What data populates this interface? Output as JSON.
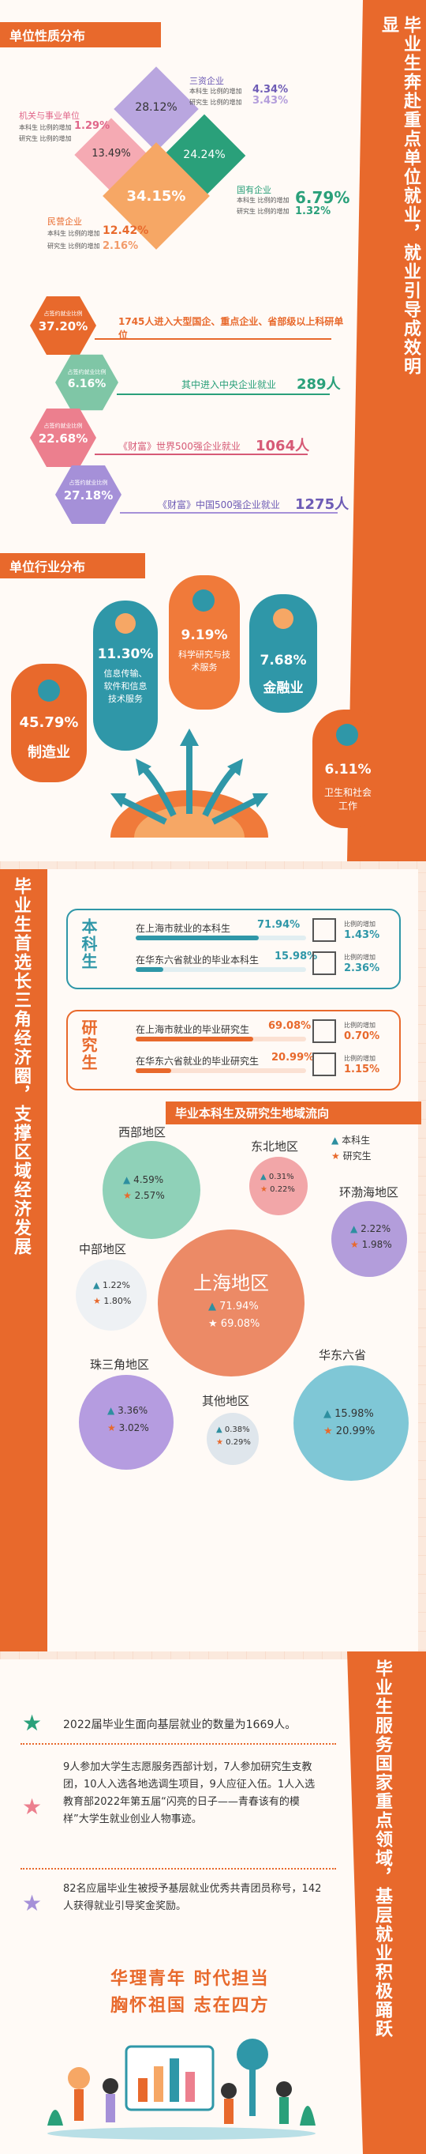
{
  "section1": {
    "title": "单位性质分布",
    "side_title": "毕业生奔赴重点单位就业，就业引导成效明显",
    "diamonds": {
      "top": {
        "pct": "28.12%",
        "name": "三资企业",
        "l1": "本科生 比例的增加",
        "v1": "4.34%",
        "l2": "研究生 比例的增加",
        "v2": "3.43%"
      },
      "left": {
        "pct": "13.49%",
        "name": "机关与事业单位",
        "l1": "本科生 比例的增加",
        "v1": "1.29%",
        "l2": "研究生 比例的增加"
      },
      "right": {
        "pct": "24.24%"
      },
      "bottom": {
        "pct": "34.15%"
      },
      "state": {
        "name": "国有企业",
        "l1": "本科生 比例的增加",
        "v1": "6.79%",
        "l2": "研究生 比例的增加",
        "v2": "1.32%"
      },
      "private": {
        "name": "民营企业",
        "l1": "本科生 比例的增加",
        "v1": "12.42%",
        "l2": "研究生 比例的增加",
        "v2": "2.16%"
      }
    },
    "hexes": [
      {
        "pct": "37.20%",
        "label": "占签约就业比例",
        "text": "1745人进入大型国企、重点企业、省部级以上科研单位",
        "num": ""
      },
      {
        "pct": "6.16%",
        "label": "占签约就业比例",
        "text": "其中进入中央企业就业",
        "num": "289人"
      },
      {
        "pct": "22.68%",
        "label": "占签约就业比例",
        "text": "《财富》世界500强企业就业",
        "num": "1064人"
      },
      {
        "pct": "27.18%",
        "label": "占签约就业比例",
        "text": "《财富》中国500强企业就业",
        "num": "1275人"
      }
    ]
  },
  "section2": {
    "title": "单位行业分布",
    "pills": [
      {
        "pct": "11.30%",
        "name": "信息传输、软件和信息技术服务"
      },
      {
        "pct": "9.19%",
        "name": "科学研究与技术服务"
      },
      {
        "pct": "7.68%",
        "name": "金融业"
      },
      {
        "pct": "45.79%",
        "name": "制造业"
      },
      {
        "pct": "6.11%",
        "name": "卫生和社会工作"
      }
    ]
  },
  "section3": {
    "side_title": "毕业生首选长三角经济圈，支撑区域经济发展",
    "undergrad": {
      "label": "本科生",
      "rows": [
        {
          "text": "在上海市就业的本科生",
          "pct": "71.94%",
          "inc_label": "比例的增加",
          "inc": "1.43%"
        },
        {
          "text": "在华东六省就业的毕业本科生",
          "pct": "15.98%",
          "inc_label": "比例的增加",
          "inc": "2.36%"
        }
      ]
    },
    "grad": {
      "label": "研究生",
      "rows": [
        {
          "text": "在上海市就业的毕业研究生",
          "pct": "69.08%",
          "inc_label": "比例的增加",
          "inc": "0.70%"
        },
        {
          "text": "在华东六省就业的毕业研究生",
          "pct": "20.99%",
          "inc_label": "比例的增加",
          "inc": "1.15%"
        }
      ]
    },
    "region_title": "毕业本科生及研究生地域流向",
    "legend": {
      "ug": "本科生",
      "pg": "研究生"
    },
    "regions": [
      {
        "name": "西部地区",
        "ug": "4.59%",
        "pg": "2.57%",
        "color": "#8fd1b8"
      },
      {
        "name": "东北地区",
        "ug": "0.31%",
        "pg": "0.22%",
        "color": "#f2a6a8"
      },
      {
        "name": "环渤海地区",
        "ug": "2.22%",
        "pg": "1.98%",
        "color": "#b39ddb"
      },
      {
        "name": "中部地区",
        "ug": "1.22%",
        "pg": "1.80%",
        "color": "#eef1f4"
      },
      {
        "name": "上海地区",
        "ug": "71.94%",
        "pg": "69.08%",
        "color": "#ec8a66"
      },
      {
        "name": "珠三角地区",
        "ug": "3.36%",
        "pg": "3.02%",
        "color": "#b59ce0"
      },
      {
        "name": "其他地区",
        "ug": "0.38%",
        "pg": "0.29%",
        "color": "#dfe6ec"
      },
      {
        "name": "华东六省",
        "ug": "15.98%",
        "pg": "20.99%",
        "color": "#7fc7d6"
      }
    ]
  },
  "section4": {
    "side_title": "毕业生服务国家重点领域，基层就业积极踊跃",
    "items": [
      {
        "text": "2022届毕业生面向基层就业的数量为1669人。"
      },
      {
        "text": "9人参加大学生志愿服务西部计划，7人参加研究生支教团，10人入选各地选调生项目，9人应征入伍。1人入选教育部2022年第五届“闪亮的日子——青春该有的模样”大学生就业创业人物事迹。"
      },
      {
        "text": "82名应届毕业生被授予基层就业优秀共青团员称号，142人获得就业引导奖金奖励。"
      }
    ],
    "slogan1": "华理青年 时代担当",
    "slogan2": "胸怀祖国 志在四方"
  }
}
